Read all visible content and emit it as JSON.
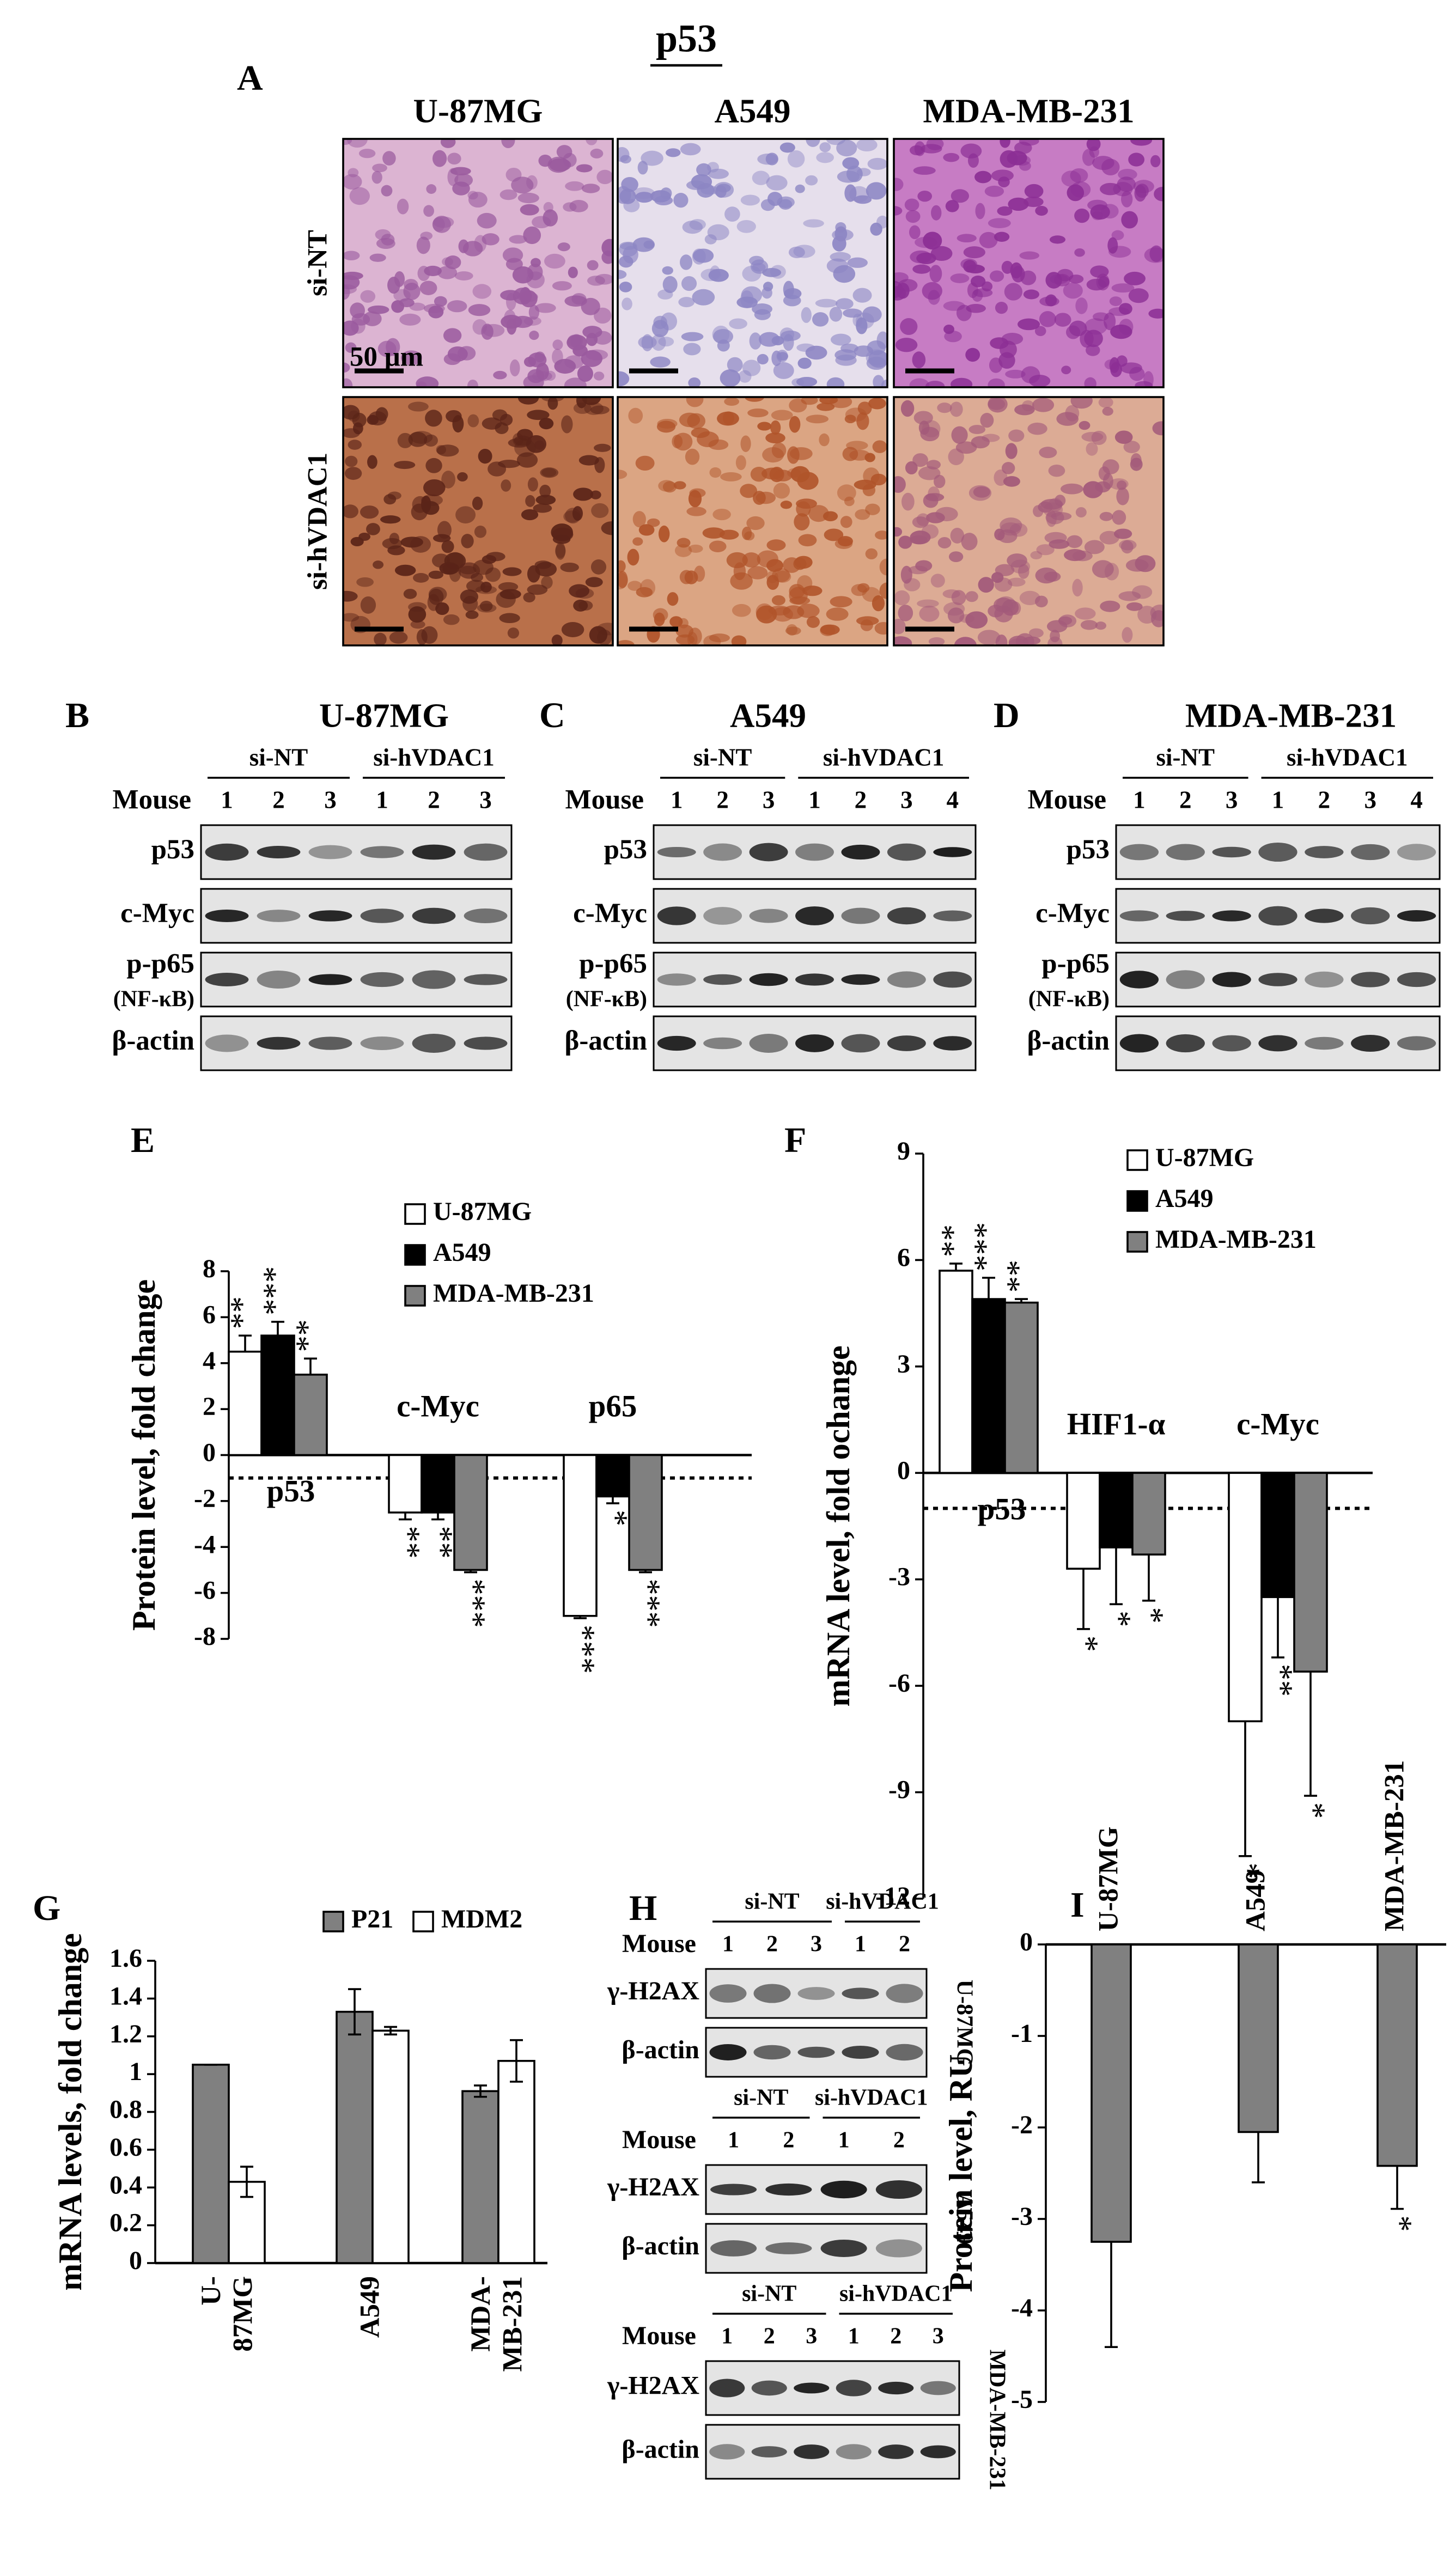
{
  "title": "p53",
  "histology": {
    "label": "A",
    "columns": [
      "U-87MG",
      "A549",
      "MDA-MB-231"
    ],
    "rows": [
      "si-NT",
      "si-hVDAC1"
    ],
    "scale": "50 μm"
  },
  "blots": [
    {
      "label": "B",
      "title": "U-87MG",
      "mouse_label": "Mouse",
      "groups": [
        {
          "name": "si-NT",
          "lanes": [
            1,
            2,
            3
          ]
        },
        {
          "name": "si-hVDAC1",
          "lanes": [
            1,
            2,
            3
          ]
        }
      ],
      "rows": [
        {
          "name": "p53"
        },
        {
          "name": "c-Myc"
        },
        {
          "name": "p-p65",
          "note": "(NF-κB)"
        },
        {
          "name": "β-actin"
        }
      ]
    },
    {
      "label": "C",
      "title": "A549",
      "mouse_label": "Mouse",
      "groups": [
        {
          "name": "si-NT",
          "lanes": [
            1,
            2,
            3
          ]
        },
        {
          "name": "si-hVDAC1",
          "lanes": [
            1,
            2,
            3,
            4
          ]
        }
      ],
      "rows": [
        {
          "name": "p53"
        },
        {
          "name": "c-Myc"
        },
        {
          "name": "p-p65",
          "note": "(NF-κB)"
        },
        {
          "name": "β-actin"
        }
      ]
    },
    {
      "label": "D",
      "title": "MDA-MB-231",
      "mouse_label": "Mouse",
      "groups": [
        {
          "name": "si-NT",
          "lanes": [
            1,
            2,
            3
          ]
        },
        {
          "name": "si-hVDAC1",
          "lanes": [
            1,
            2,
            3,
            4
          ]
        }
      ],
      "rows": [
        {
          "name": "p53"
        },
        {
          "name": "c-Myc"
        },
        {
          "name": "p-p65",
          "note": "(NF-κB)"
        },
        {
          "name": "β-actin"
        }
      ]
    },
    {
      "label": "H",
      "side": "U-87MG",
      "mouse_label": "Mouse",
      "groups": [
        {
          "name": "si-NT",
          "lanes": [
            1,
            2,
            3
          ]
        },
        {
          "name": "si-hVDAC1",
          "lanes": [
            1,
            2
          ]
        }
      ],
      "rows": [
        {
          "name": "γ-H2AX"
        },
        {
          "name": "β-actin"
        }
      ]
    },
    {
      "side": "A549",
      "mouse_label": "Mouse",
      "groups": [
        {
          "name": "si-NT",
          "lanes": [
            1,
            2
          ]
        },
        {
          "name": "si-hVDAC1",
          "lanes": [
            1,
            2
          ]
        }
      ],
      "rows": [
        {
          "name": "γ-H2AX"
        },
        {
          "name": "β-actin"
        }
      ]
    },
    {
      "side": "MDA-MB-231",
      "mouse_label": "Mouse",
      "groups": [
        {
          "name": "si-NT",
          "lanes": [
            1,
            2,
            3
          ]
        },
        {
          "name": "si-hVDAC1",
          "lanes": [
            1,
            2,
            3
          ]
        }
      ],
      "rows": [
        {
          "name": "γ-H2AX"
        },
        {
          "name": "β-actin"
        }
      ]
    }
  ],
  "chart_data": [
    {
      "type": "bar",
      "label": "E",
      "ylabel": "Protein level, fold change",
      "categories": [
        "p53",
        "c-Myc",
        "p65"
      ],
      "series": [
        {
          "name": "U-87MG",
          "color": "#ffffff",
          "values": [
            4.5,
            -2.5,
            -7
          ],
          "errors": [
            0.7,
            0.3,
            0.1
          ],
          "significance": [
            "**",
            "**",
            "***"
          ]
        },
        {
          "name": "A549",
          "color": "#000000",
          "values": [
            5.2,
            -2.5,
            -1.8
          ],
          "errors": [
            0.6,
            0.3,
            0.3
          ],
          "significance": [
            "***",
            "**",
            "*"
          ]
        },
        {
          "name": "MDA-MB-231",
          "color": "#808080",
          "values": [
            3.5,
            -5,
            -5
          ],
          "errors": [
            0.7,
            0.1,
            0.1
          ],
          "significance": [
            "**",
            "***",
            "***"
          ]
        }
      ],
      "reference_line": -1,
      "ylim": [
        -8,
        8
      ],
      "yticks": [
        8,
        6,
        4,
        2,
        0,
        -2,
        -4,
        -6,
        -8
      ]
    },
    {
      "type": "bar",
      "label": "F",
      "ylabel": "mRNA level, fold ochange",
      "categories": [
        "p53",
        "HIF1-α",
        "c-Myc"
      ],
      "series": [
        {
          "name": "U-87MG",
          "color": "#ffffff",
          "values": [
            5.7,
            -2.7,
            -7
          ],
          "errors": [
            0.2,
            1.7,
            3.8
          ],
          "significance": [
            "**",
            "*",
            "*"
          ]
        },
        {
          "name": "A549",
          "color": "#000000",
          "values": [
            4.9,
            -2.1,
            -3.5
          ],
          "errors": [
            0.6,
            1.6,
            1.7
          ],
          "significance": [
            "***",
            "*",
            "**"
          ]
        },
        {
          "name": "MDA-MB-231",
          "color": "#808080",
          "values": [
            4.8,
            -2.3,
            -5.6
          ],
          "errors": [
            0.1,
            1.3,
            3.5
          ],
          "significance": [
            "**",
            "*",
            "*"
          ]
        }
      ],
      "reference_line": -1,
      "ylim": [
        -12,
        9
      ],
      "yticks": [
        9,
        6,
        3,
        0,
        -3,
        -6,
        -9,
        -12
      ]
    },
    {
      "type": "bar",
      "label": "G",
      "ylabel": "mRNA  levels, fold change",
      "categories": [
        "U-87MG",
        "A549",
        "MDA-MB-231"
      ],
      "series": [
        {
          "name": "P21",
          "color": "#808080",
          "values": [
            1.05,
            1.33,
            0.91
          ],
          "errors": [
            0,
            0.12,
            0.03
          ]
        },
        {
          "name": "MDM2",
          "color": "#ffffff",
          "values": [
            0.43,
            1.23,
            1.07
          ],
          "errors": [
            0.08,
            0.02,
            0.11
          ]
        }
      ],
      "ylim": [
        0,
        1.6
      ],
      "yticks": [
        0,
        0.2,
        0.4,
        0.6,
        0.8,
        1,
        1.2,
        1.4,
        1.6
      ]
    },
    {
      "type": "bar",
      "label": "I",
      "ylabel": "Protein level, RU",
      "categories": [
        "U-87MG",
        "A549",
        "MDA-MB-231"
      ],
      "series": [
        {
          "color": "#808080",
          "values": [
            -3.25,
            -2.05,
            -2.42
          ],
          "errors": [
            1.15,
            0.55,
            0.47
          ],
          "significance": [
            null,
            null,
            "*"
          ]
        }
      ],
      "ylim": [
        -5,
        0
      ],
      "yticks": [
        0,
        -1,
        -2,
        -3,
        -4,
        -5
      ]
    }
  ]
}
